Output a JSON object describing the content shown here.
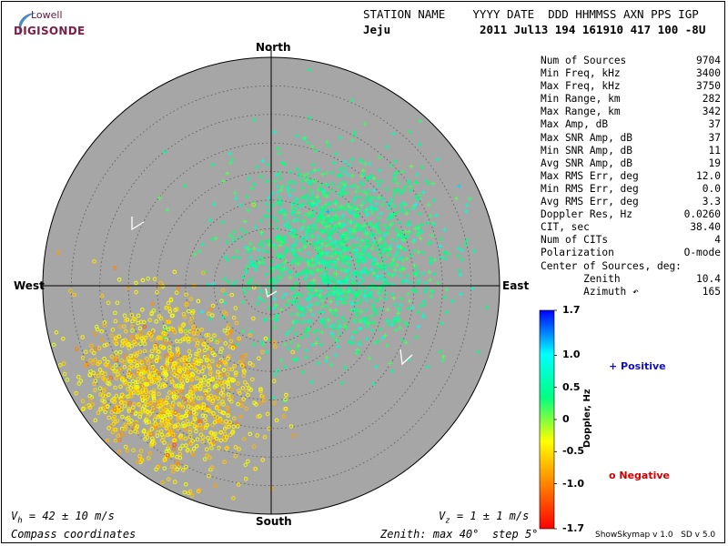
{
  "logo": {
    "top": "Lowell",
    "main": "DIGISONDE"
  },
  "header": {
    "line1": "STATION NAME    YYYY DATE  DDD HHMMSS AXN PPS IGP",
    "station": "Jeju",
    "line2": "2011 Jul13 194 161910 417 100 -8U"
  },
  "stats": [
    {
      "label": "Num of Sources",
      "value": "9704"
    },
    {
      "label": "Min Freq, kHz",
      "value": "3400"
    },
    {
      "label": "Max Freq, kHz",
      "value": "3750"
    },
    {
      "label": "Min Range, km",
      "value": "282"
    },
    {
      "label": "Max Range, km",
      "value": "342"
    },
    {
      "label": "Max Amp, dB",
      "value": "37"
    },
    {
      "label": "Max SNR Amp, dB",
      "value": "37"
    },
    {
      "label": "Min SNR Amp, dB",
      "value": "11"
    },
    {
      "label": "Avg SNR Amp, dB",
      "value": "19"
    },
    {
      "label": "Max RMS Err, deg",
      "value": "12.0"
    },
    {
      "label": "Min RMS Err, deg",
      "value": "0.0"
    },
    {
      "label": "Avg RMS Err, deg",
      "value": "3.3"
    },
    {
      "label": "Doppler Res, Hz",
      "value": "0.0260"
    },
    {
      "label": "CIT, sec",
      "value": "38.40"
    },
    {
      "label": "Num of CITs",
      "value": "4"
    },
    {
      "label": "Polarization",
      "value": "O-mode"
    },
    {
      "label": "Center of Sources, deg:",
      "value": ""
    },
    {
      "label": "       Zenith",
      "value": "10.4"
    },
    {
      "label": "       Azimuth ↶",
      "value": "165"
    }
  ],
  "chart_data": {
    "type": "scatter",
    "subtype": "polar skymap",
    "directions": {
      "north": "North",
      "south": "South",
      "east": "East",
      "west": "West"
    },
    "zenith_max_deg": 40,
    "ring_step_deg": 5,
    "background_color": "#a6a6a6",
    "clusters": [
      {
        "description_sign": "positive",
        "marker": "+",
        "count_shown": 1500,
        "center_zenith_deg": 13,
        "center_azimuth_deg": 65,
        "spread_deg": 9
      },
      {
        "description_sign": "negative",
        "marker": "o",
        "count_shown": 1300,
        "center_zenith_deg": 26,
        "center_azimuth_deg": 225,
        "spread_deg": 8
      }
    ],
    "colorbar": {
      "label": "Doppler, Hz",
      "min": -1.7,
      "max": 1.7,
      "ticks": [
        "1.7",
        "1.0",
        "0.5",
        "0",
        "-0.5",
        "-1.0",
        "-1.7"
      ],
      "tick_values": [
        1.7,
        1.0,
        0.5,
        0,
        -0.5,
        -1.0,
        -1.7
      ],
      "colors": [
        "#0000ff",
        "#00ffff",
        "#00ff80",
        "#ffff00",
        "#ff8000",
        "#ff0000"
      ]
    },
    "legend": {
      "positive": "+ Positive",
      "negative": "o Negative",
      "positive_color": "#1010c0",
      "negative_color": "#cc0000"
    }
  },
  "velocity": {
    "vh": "V",
    "vh_sub": "h",
    "vh_text": " = 42 ± 10 m/s",
    "vz": "V",
    "vz_sub": "z",
    "vz_text": " = 1 ± 1 m/s"
  },
  "footer": {
    "coords": "Compass coordinates",
    "zenith": "Zenith: max 40°  step 5°",
    "version": "ShowSkymap v 1.0   SD v 5.0"
  }
}
